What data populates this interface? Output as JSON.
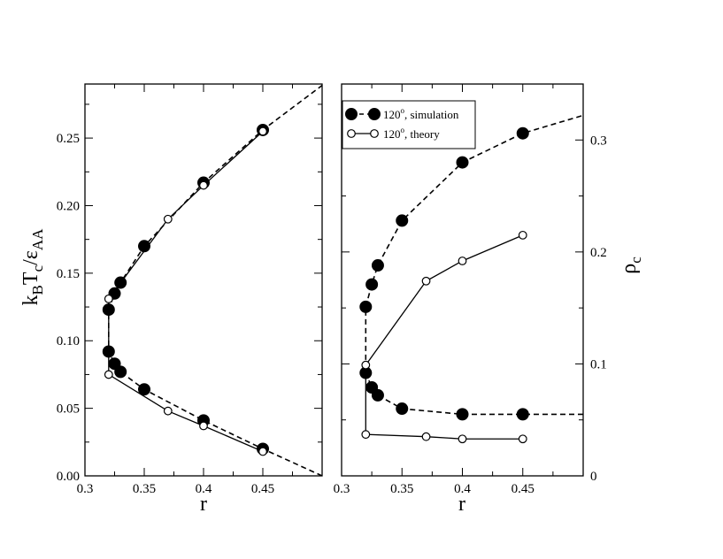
{
  "chart_data": [
    {
      "type": "line",
      "panel": "left",
      "xlabel": "r",
      "ylabel_main": "k",
      "ylabel_sub1": "B",
      "ylabel_mid": "T",
      "ylabel_sub2": "c",
      "ylabel_slash": "/ε",
      "ylabel_sub3": "AA",
      "xlim": [
        0.3,
        0.5
      ],
      "ylim": [
        0.0,
        0.29
      ],
      "xticks": [
        0.3,
        0.35,
        0.4,
        0.45
      ],
      "xtick_labels": [
        "0.3",
        "0.35",
        "0.4",
        "0.45"
      ],
      "yticks": [
        0.0,
        0.05,
        0.1,
        0.15,
        0.2,
        0.25
      ],
      "ytick_labels": [
        "0.00",
        "0.05",
        "0.10",
        "0.15",
        "0.20",
        "0.25"
      ],
      "series": [
        {
          "marker": "filled-circle",
          "line": "dashed",
          "x": [
            0.5,
            0.45,
            0.4,
            0.35,
            0.33,
            0.325,
            0.32,
            0.32,
            0.325,
            0.33,
            0.35,
            0.4,
            0.45,
            0.5
          ],
          "y": [
            0.0,
            0.02,
            0.041,
            0.064,
            0.077,
            0.083,
            0.092,
            0.123,
            0.135,
            0.143,
            0.17,
            0.217,
            0.256,
            0.289
          ],
          "marked": [
            false,
            true,
            true,
            true,
            true,
            true,
            true,
            true,
            true,
            true,
            true,
            true,
            true,
            false
          ]
        },
        {
          "marker": "open-circle",
          "line": "solid",
          "x": [
            0.45,
            0.4,
            0.37,
            0.32,
            0.32,
            0.37,
            0.4,
            0.45
          ],
          "y": [
            0.018,
            0.037,
            0.048,
            0.075,
            0.131,
            0.19,
            0.215,
            0.255
          ],
          "marked": [
            true,
            true,
            true,
            true,
            true,
            true,
            true,
            true
          ]
        }
      ]
    },
    {
      "type": "line",
      "panel": "right",
      "xlabel": "r",
      "ylabel_main": "ρ",
      "ylabel_sub": "c",
      "xlim": [
        0.3,
        0.5
      ],
      "ylim": [
        0.0,
        0.35
      ],
      "xticks": [
        0.3,
        0.35,
        0.4,
        0.45
      ],
      "xtick_labels": [
        "0.3",
        "0.35",
        "0.4",
        "0.45"
      ],
      "yticks": [
        0.0,
        0.1,
        0.2,
        0.3
      ],
      "ytick_labels": [
        "0",
        "0.1",
        "0.2",
        "0.3"
      ],
      "legend_position": "top-left",
      "legend": [
        {
          "text": "120",
          "sup": "o",
          "suffix": ", simulation",
          "marker": "filled-circle",
          "line": "dashed"
        },
        {
          "text": "120",
          "sup": "o",
          "suffix": ", theory",
          "marker": "open-circle",
          "line": "solid"
        }
      ],
      "series": [
        {
          "marker": "filled-circle",
          "line": "dashed",
          "x": [
            0.5,
            0.45,
            0.4,
            0.35,
            0.33,
            0.325,
            0.32,
            0.32,
            0.325,
            0.33,
            0.35,
            0.4,
            0.45,
            0.5
          ],
          "y": [
            0.055,
            0.055,
            0.055,
            0.06,
            0.072,
            0.079,
            0.092,
            0.151,
            0.171,
            0.188,
            0.228,
            0.28,
            0.306,
            0.322
          ],
          "marked": [
            false,
            true,
            true,
            true,
            true,
            true,
            true,
            true,
            true,
            true,
            true,
            true,
            true,
            false
          ]
        },
        {
          "marker": "open-circle",
          "line": "solid",
          "x": [
            0.45,
            0.4,
            0.37,
            0.32,
            0.32,
            0.32,
            0.37,
            0.4,
            0.45
          ],
          "y": [
            0.033,
            0.033,
            0.035,
            0.037,
            0.099,
            0.099,
            0.174,
            0.192,
            0.215
          ],
          "marked": [
            true,
            true,
            true,
            true,
            false,
            true,
            true,
            true,
            true
          ]
        }
      ]
    }
  ]
}
